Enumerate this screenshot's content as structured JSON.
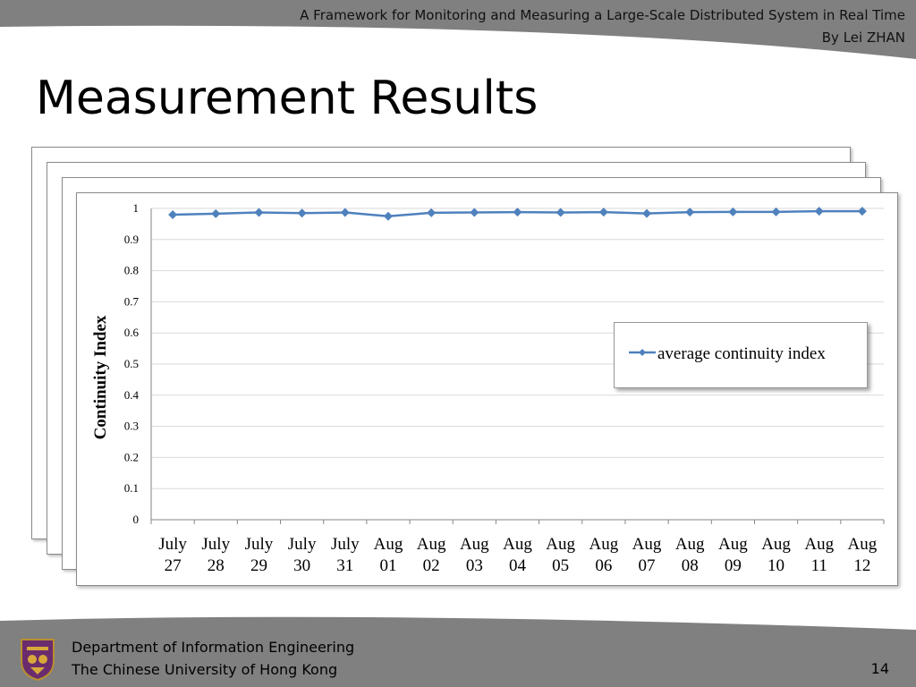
{
  "header": {
    "title": "A Framework for Monitoring and Measuring a Large-Scale Distributed System in Real Time",
    "author": "By Lei ZHAN"
  },
  "slide": {
    "title": "Measurement Results",
    "page_number": "14"
  },
  "footer": {
    "department": "Department of Information Engineering",
    "university": "The Chinese University of Hong Kong"
  },
  "colors": {
    "series": "#4f81bd",
    "band": "#808080",
    "grid": "#d9d9d9"
  },
  "chart_data": {
    "type": "line",
    "title": "",
    "xlabel": "",
    "ylabel": "Continuity Index",
    "ylim": [
      0,
      1
    ],
    "yticks": [
      "0",
      "0.1",
      "0.2",
      "0.3",
      "0.4",
      "0.5",
      "0.6",
      "0.7",
      "0.8",
      "0.9",
      "1"
    ],
    "categories": [
      [
        "July",
        "27"
      ],
      [
        "July",
        "28"
      ],
      [
        "July",
        "29"
      ],
      [
        "July",
        "30"
      ],
      [
        "July",
        "31"
      ],
      [
        "Aug",
        "01"
      ],
      [
        "Aug",
        "02"
      ],
      [
        "Aug",
        "03"
      ],
      [
        "Aug",
        "04"
      ],
      [
        "Aug",
        "05"
      ],
      [
        "Aug",
        "06"
      ],
      [
        "Aug",
        "07"
      ],
      [
        "Aug",
        "08"
      ],
      [
        "Aug",
        "09"
      ],
      [
        "Aug",
        "10"
      ],
      [
        "Aug",
        "11"
      ],
      [
        "Aug",
        "12"
      ]
    ],
    "series": [
      {
        "name": "average continuity index",
        "values": [
          0.98,
          0.983,
          0.987,
          0.985,
          0.987,
          0.975,
          0.986,
          0.987,
          0.988,
          0.987,
          0.988,
          0.984,
          0.988,
          0.989,
          0.989,
          0.991,
          0.991
        ]
      }
    ],
    "grid": true,
    "legend": "right"
  }
}
